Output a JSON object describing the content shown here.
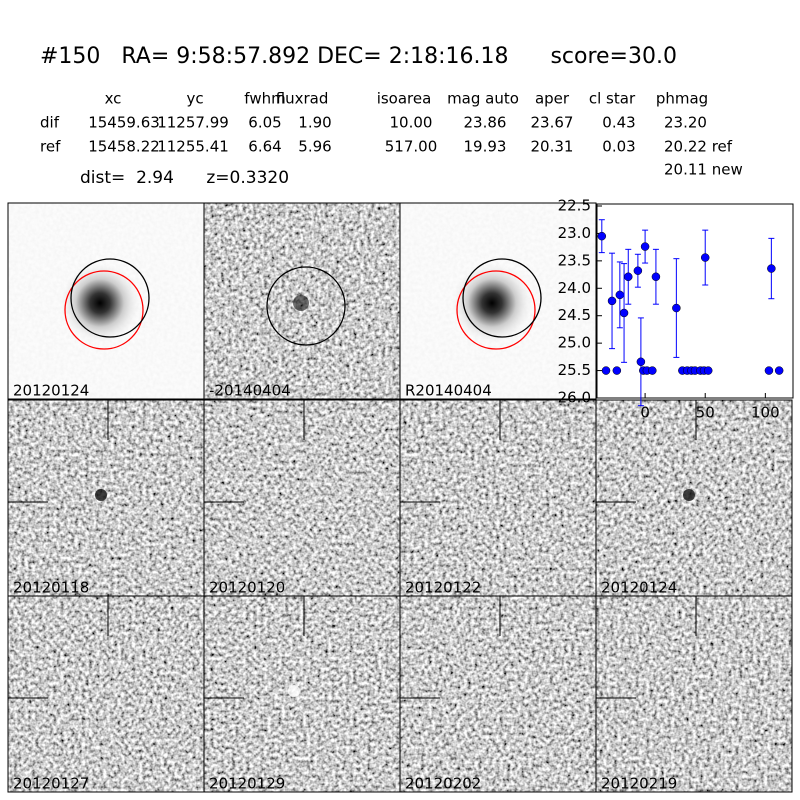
{
  "header": {
    "title": "#150   RA= 9:58:57.892 DEC= 2:18:16.18      score=30.0",
    "dist": "dist=  2.94      z=0.3320",
    "note": "20.11 new"
  },
  "table": {
    "columns": [
      "xc",
      "yc",
      "fwhm",
      "fluxrad",
      "isoarea",
      "mag auto",
      "aper",
      "cl star",
      "phmag"
    ],
    "rows": [
      {
        "label": "dif",
        "cells": [
          "15459.63",
          "11257.99",
          "6.05",
          "1.90",
          "10.00",
          "23.86",
          "23.67",
          "0.43",
          "23.20"
        ]
      },
      {
        "label": "ref",
        "cells": [
          "15458.22",
          "11255.41",
          "6.64",
          "5.96",
          "517.00",
          "19.93",
          "20.31",
          "0.03",
          "20.22 ref"
        ]
      }
    ]
  },
  "panels": [
    "20120124",
    "-20140404",
    "R20140404",
    "20120118",
    "20120120",
    "20120122",
    "20120124",
    "20120127",
    "20120129",
    "20120202",
    "20120219"
  ],
  "chart_data": {
    "type": "scatter",
    "series": [
      {
        "color": "#0000ff",
        "x": [
          -36,
          -27.5,
          -21,
          -17.5,
          -14,
          -6,
          -3.5,
          0,
          9,
          26,
          50,
          105
        ],
        "values": [
          23.05,
          24.23,
          24.12,
          24.45,
          23.79,
          23.68,
          25.34,
          23.24,
          23.79,
          24.36,
          23.44,
          23.64
        ],
        "errors": [
          0.3,
          0.87,
          0.6,
          0.9,
          0.5,
          0.3,
          0.8,
          0.3,
          0.5,
          0.9,
          0.5,
          0.55
        ]
      },
      {
        "color": "#0000ff",
        "x": [
          -32.5,
          -23.5,
          -1.5,
          1.5,
          6,
          31,
          35,
          38.5,
          41.5,
          46,
          49,
          52.5,
          103,
          111.5
        ],
        "values": [
          25.5,
          25.5,
          25.5,
          25.5,
          25.5,
          25.5,
          25.5,
          25.5,
          25.5,
          25.5,
          25.5,
          25.5,
          25.5,
          25.5
        ]
      }
    ],
    "xlim": [
      -40,
      123
    ],
    "xticks": [
      0,
      50,
      100
    ],
    "ylim": [
      26.0,
      22.5
    ],
    "yticks": [
      22.5,
      {
        "value": 23,
        "label": "23.0"
      },
      23.5,
      {
        "value": 24,
        "label": "24.0"
      },
      24.5,
      {
        "value": 25,
        "label": "25.0"
      },
      25.5,
      {
        "value": 26,
        "label": "26.0"
      }
    ]
  }
}
